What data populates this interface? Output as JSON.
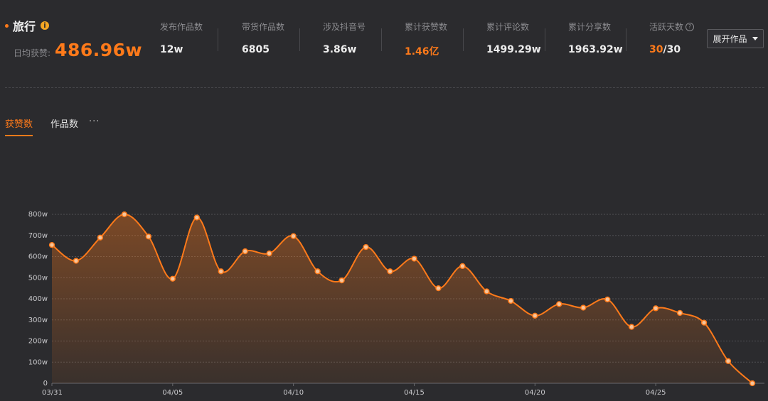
{
  "header": {
    "title": "旅行",
    "daily_label": "日均获赞:",
    "daily_value": "486.96w",
    "expand_button": "展开作品"
  },
  "stats": [
    {
      "label": "发布作品数",
      "value": "12w"
    },
    {
      "label": "带货作品数",
      "value": "6805"
    },
    {
      "label": "涉及抖音号",
      "value": "3.86w"
    },
    {
      "label": "累计获赞数",
      "value": "1.46亿",
      "highlight": true
    },
    {
      "label": "累计评论数",
      "value": "1499.29w"
    },
    {
      "label": "累计分享数",
      "value": "1963.92w"
    },
    {
      "label": "活跃天数",
      "value_active": "30",
      "value_total": "/30"
    }
  ],
  "tabs": [
    {
      "label": "获赞数",
      "active": true
    },
    {
      "label": "作品数",
      "active": false
    }
  ],
  "more_label": "···",
  "colors": {
    "accent": "#ff7a1a",
    "background": "#2b2b2e"
  },
  "chart_data": {
    "type": "area",
    "unit": "w",
    "x": [
      "03/31",
      "04/01",
      "04/02",
      "04/03",
      "04/04",
      "04/05",
      "04/06",
      "04/07",
      "04/08",
      "04/09",
      "04/10",
      "04/11",
      "04/12",
      "04/13",
      "04/14",
      "04/15",
      "04/16",
      "04/17",
      "04/18",
      "04/19",
      "04/20",
      "04/21",
      "04/22",
      "04/23",
      "04/24",
      "04/25",
      "04/26",
      "04/27",
      "04/28",
      "04/29"
    ],
    "values": [
      655,
      580,
      690,
      800,
      695,
      495,
      785,
      530,
      625,
      615,
      697,
      530,
      487,
      645,
      530,
      590,
      450,
      555,
      435,
      390,
      320,
      375,
      358,
      397,
      267,
      355,
      333,
      287,
      105,
      0
    ],
    "xticks": [
      "03/31",
      "04/05",
      "04/10",
      "04/15",
      "04/20",
      "04/25"
    ],
    "yticks": [
      0,
      100,
      200,
      300,
      400,
      500,
      600,
      700,
      800
    ],
    "ytick_labels": [
      "0",
      "100w",
      "200w",
      "300w",
      "400w",
      "500w",
      "600w",
      "700w",
      "800w"
    ],
    "ylim": [
      0,
      800
    ],
    "grid": true
  }
}
